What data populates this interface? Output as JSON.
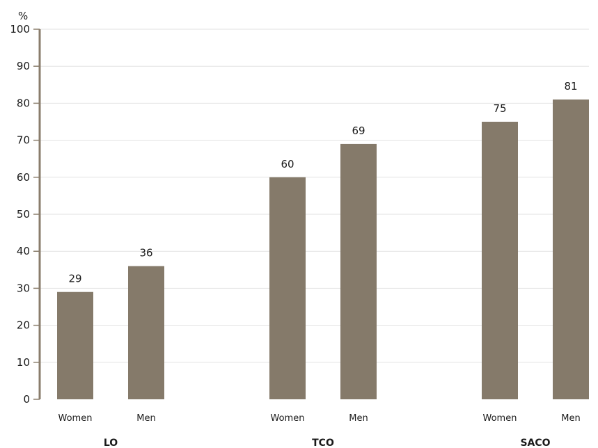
{
  "chart_data": {
    "type": "bar",
    "ylabel": "%",
    "ylim": [
      0,
      100
    ],
    "yticks": [
      0,
      10,
      20,
      30,
      40,
      50,
      60,
      70,
      80,
      90,
      100
    ],
    "grid": true,
    "bar_color": "#857a6a",
    "axis_color": "#8a7d6c",
    "groups": [
      {
        "name": "LO",
        "bars": [
          {
            "label": "Women",
            "value": 29
          },
          {
            "label": "Men",
            "value": 36
          }
        ]
      },
      {
        "name": "TCO",
        "bars": [
          {
            "label": "Women",
            "value": 60
          },
          {
            "label": "Men",
            "value": 69
          }
        ]
      },
      {
        "name": "SACO",
        "bars": [
          {
            "label": "Women",
            "value": 75
          },
          {
            "label": "Men",
            "value": 81
          }
        ]
      }
    ]
  }
}
